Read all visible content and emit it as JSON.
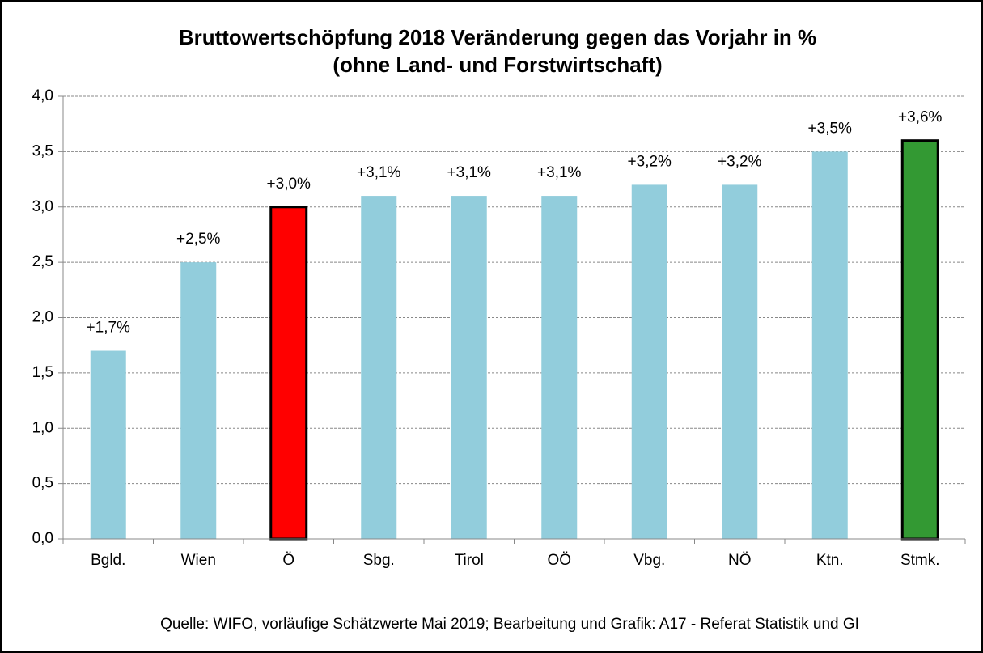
{
  "chart_data": {
    "type": "bar",
    "title": "Bruttowertschöpfung 2018 Veränderung gegen das Vorjahr in %",
    "subtitle": "(ohne Land- und Forstwirtschaft)",
    "source": "Quelle: WIFO, vorläufige Schätzwerte Mai 2019; Bearbeitung und Grafik: A17 - Referat Statistik und GI",
    "categories": [
      "Bgld.",
      "Wien",
      "Ö",
      "Sbg.",
      "Tirol",
      "OÖ",
      "Vbg.",
      "NÖ",
      "Ktn.",
      "Stmk."
    ],
    "values": [
      1.7,
      2.5,
      3.0,
      3.1,
      3.1,
      3.1,
      3.2,
      3.2,
      3.5,
      3.6
    ],
    "value_labels": [
      "+1,7%",
      "+2,5%",
      "+3,0%",
      "+3,1%",
      "+3,1%",
      "+3,1%",
      "+3,2%",
      "+3,2%",
      "+3,5%",
      "+3,6%"
    ],
    "colors": [
      "#92cddc",
      "#92cddc",
      "#ff0000",
      "#92cddc",
      "#92cddc",
      "#92cddc",
      "#92cddc",
      "#92cddc",
      "#92cddc",
      "#339933"
    ],
    "edgecolors": [
      null,
      null,
      "#000000",
      null,
      null,
      null,
      null,
      null,
      null,
      "#000000"
    ],
    "ylim": [
      0,
      4
    ],
    "yticks": [
      {
        "value": 0,
        "label": "0,0"
      },
      {
        "value": 0.5,
        "label": "0,5"
      },
      {
        "value": 1,
        "label": "1,0"
      },
      {
        "value": 1.5,
        "label": "1,5"
      },
      {
        "value": 2,
        "label": "2,0"
      },
      {
        "value": 2.5,
        "label": "2,5"
      },
      {
        "value": 3,
        "label": "3,0"
      },
      {
        "value": 3.5,
        "label": "3,5"
      },
      {
        "value": 4,
        "label": "4,0"
      }
    ],
    "grid": true
  }
}
